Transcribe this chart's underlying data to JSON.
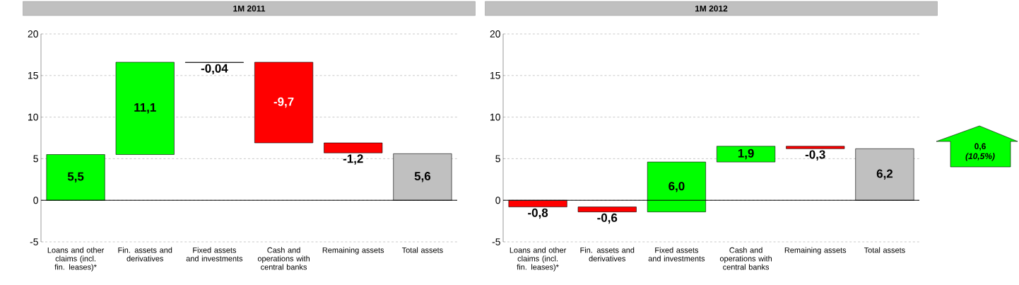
{
  "chart_data": [
    {
      "type": "bar",
      "title": "1M 2011",
      "categories": [
        "Loans and other claims (incl. fin. leases)*",
        "Fin. assets and derivatives",
        "Fixed assets and investments",
        "Cash and operations with central banks",
        "Remaining assets",
        "Total assets"
      ],
      "values": [
        5.5,
        11.1,
        -0.04,
        -9.7,
        -1.2,
        5.6
      ],
      "base": [
        0,
        5.5,
        16.6,
        16.6,
        6.9,
        0
      ],
      "colors": [
        "#00ff00",
        "#00ff00",
        "#000000",
        "#ff0000",
        "#ff0000",
        "#c0c0c0"
      ],
      "value_labels": [
        "5,5",
        "11,1",
        "-0,04",
        "-9,7",
        "-1,2",
        "5,6"
      ],
      "ylim": [
        -5,
        20
      ],
      "yticks": [
        -5,
        0,
        5,
        10,
        15,
        20
      ],
      "grid": "y"
    },
    {
      "type": "bar",
      "title": "1M 2012",
      "categories": [
        "Loans and other claims (incl. fin. leases)*",
        "Fin. assets and derivatives",
        "Fixed assets and investments",
        "Cash and operations with central banks",
        "Remaining assets",
        "Total assets"
      ],
      "values": [
        -0.8,
        -0.6,
        6.0,
        1.9,
        -0.3,
        6.2
      ],
      "base": [
        0,
        -0.8,
        -1.4,
        4.6,
        6.5,
        0
      ],
      "colors": [
        "#ff0000",
        "#ff0000",
        "#00ff00",
        "#00ff00",
        "#ff0000",
        "#c0c0c0"
      ],
      "value_labels": [
        "-0,8",
        "-0,6",
        "6,0",
        "1,9",
        "-0,3",
        "6,2"
      ],
      "ylim": [
        -5,
        20
      ],
      "yticks": [
        -5,
        0,
        5,
        10,
        15,
        20
      ],
      "grid": "y",
      "annotations": [
        "0,6 *(10,5%)*"
      ]
    }
  ]
}
